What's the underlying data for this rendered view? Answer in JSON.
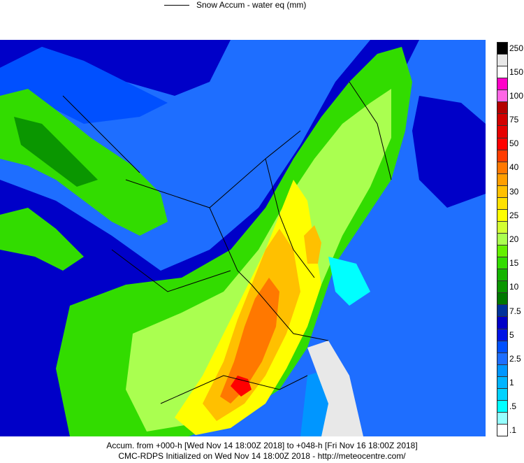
{
  "legend": {
    "series_label": "Snow Accum - water eq (mm)"
  },
  "colorbar": {
    "levels": [
      {
        "label": "250",
        "color": "#000000"
      },
      {
        "label": "",
        "color": "#e8e8e8"
      },
      {
        "label": "150",
        "color": "#ffffff"
      },
      {
        "label": "",
        "color": "#ff00c8"
      },
      {
        "label": "100",
        "color": "#ff66e6"
      },
      {
        "label": "",
        "color": "#b40000"
      },
      {
        "label": "75",
        "color": "#d20000"
      },
      {
        "label": "",
        "color": "#e60000"
      },
      {
        "label": "50",
        "color": "#ff0000"
      },
      {
        "label": "",
        "color": "#ff3c00"
      },
      {
        "label": "40",
        "color": "#ff7800"
      },
      {
        "label": "",
        "color": "#ff9e00"
      },
      {
        "label": "30",
        "color": "#ffc000"
      },
      {
        "label": "",
        "color": "#ffe100"
      },
      {
        "label": "25",
        "color": "#ffff00"
      },
      {
        "label": "",
        "color": "#d2ff32"
      },
      {
        "label": "20",
        "color": "#aaff50"
      },
      {
        "label": "",
        "color": "#64f000"
      },
      {
        "label": "15",
        "color": "#32dc00"
      },
      {
        "label": "",
        "color": "#14b400"
      },
      {
        "label": "10",
        "color": "#0a9600"
      },
      {
        "label": "",
        "color": "#007800"
      },
      {
        "label": "7.5",
        "color": "#00329b"
      },
      {
        "label": "",
        "color": "#0000c8"
      },
      {
        "label": "5",
        "color": "#0014e6"
      },
      {
        "label": "",
        "color": "#0050ff"
      },
      {
        "label": "2.5",
        "color": "#1e6eff"
      },
      {
        "label": "",
        "color": "#0096ff"
      },
      {
        "label": "1",
        "color": "#00b4ff"
      },
      {
        "label": "",
        "color": "#00d2ff"
      },
      {
        "label": ".5",
        "color": "#00ffff"
      },
      {
        "label": "",
        "color": "#96ffff"
      },
      {
        "label": ".1",
        "color": "#ffffff"
      }
    ]
  },
  "footer": {
    "line1": "Accum. from +000-h [Wed Nov 14 18:00Z 2018] to +048-h [Fri Nov 16 18:00Z 2018]",
    "line2": "CMC-RDPS Initialized on Wed Nov 14 18:00Z 2018 - http://meteocentre.com/"
  }
}
